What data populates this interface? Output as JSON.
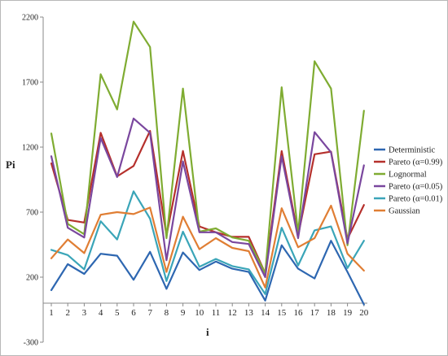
{
  "chart_data": {
    "type": "line",
    "xlabel": "i",
    "ylabel": "Pi",
    "ylim": [
      -300,
      2200
    ],
    "yticks": [
      -300,
      200,
      700,
      1200,
      1700,
      2200
    ],
    "x": [
      1,
      2,
      3,
      4,
      5,
      6,
      7,
      8,
      9,
      10,
      11,
      12,
      13,
      14,
      15,
      16,
      17,
      18,
      19,
      20
    ],
    "grid": false,
    "legend_position": "right",
    "series": [
      {
        "name": "Deterministic",
        "color": "#2e67b1",
        "values": [
          100,
          300,
          225,
          380,
          365,
          180,
          395,
          110,
          390,
          255,
          320,
          265,
          240,
          20,
          445,
          265,
          190,
          480,
          240,
          -10
        ]
      },
      {
        "name": "Pareto (α=0.99)",
        "color": "#b5302c",
        "values": [
          1075,
          640,
          620,
          1310,
          975,
          1055,
          1325,
          520,
          1170,
          590,
          545,
          510,
          510,
          230,
          1170,
          520,
          1145,
          1165,
          495,
          755
        ]
      },
      {
        "name": "Lognormal",
        "color": "#7fac32",
        "values": [
          1305,
          610,
          530,
          1760,
          1490,
          2165,
          1970,
          500,
          1650,
          550,
          575,
          505,
          480,
          230,
          1660,
          540,
          1860,
          1650,
          445,
          1480
        ]
      },
      {
        "name": "Pareto (α=0.05)",
        "color": "#7a479e",
        "values": [
          1130,
          580,
          505,
          1270,
          970,
          1420,
          1310,
          330,
          1090,
          545,
          545,
          470,
          455,
          200,
          1130,
          500,
          1315,
          1160,
          460,
          1060
        ]
      },
      {
        "name": "Pareto (α=0.01)",
        "color": "#3aa5b8",
        "values": [
          410,
          370,
          260,
          630,
          490,
          860,
          650,
          170,
          550,
          280,
          340,
          285,
          260,
          70,
          580,
          290,
          560,
          590,
          270,
          480
        ]
      },
      {
        "name": "Gaussian",
        "color": "#e07e34",
        "values": [
          345,
          490,
          385,
          680,
          700,
          685,
          735,
          240,
          665,
          415,
          500,
          425,
          400,
          120,
          730,
          430,
          500,
          750,
          380,
          250
        ]
      }
    ]
  }
}
